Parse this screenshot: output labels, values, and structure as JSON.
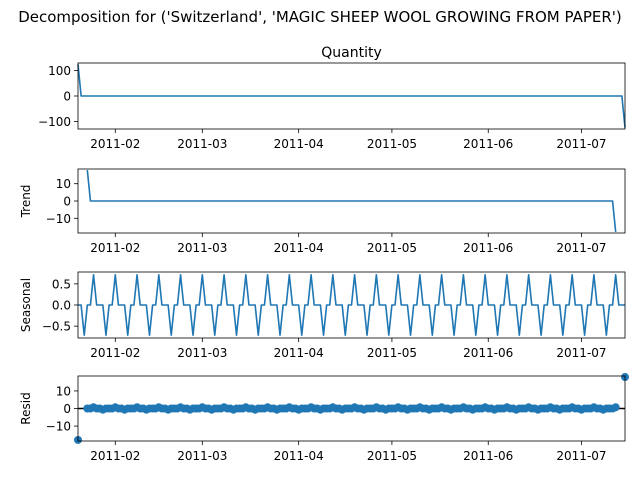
{
  "chart_data": {
    "type": "line",
    "title": "Decomposition for ('Switzerland', 'MAGIC SHEEP WOOL GROWING FROM PAPER')",
    "x_range": [
      "2011-01-20",
      "2011-07-15"
    ],
    "x_ticks": [
      "2011-02",
      "2011-03",
      "2011-04",
      "2011-05",
      "2011-06",
      "2011-07"
    ],
    "x_tick_dates": [
      "2011-02-01",
      "2011-03-01",
      "2011-04-01",
      "2011-05-01",
      "2011-06-01",
      "2011-07-01"
    ],
    "colors": {
      "line": "#1f77b4"
    },
    "grid": false,
    "panels": [
      {
        "id": "observed",
        "title": "Quantity",
        "ylabel": "",
        "style": "line",
        "ylim": [
          -130,
          130
        ],
        "yticks": [
          100,
          0,
          -100
        ],
        "ytick_labels": [
          "100",
          "0",
          "−100"
        ],
        "points": [
          [
            "2011-01-20",
            125
          ],
          [
            "2011-01-21",
            0
          ],
          [
            "2011-07-14",
            0
          ],
          [
            "2011-07-15",
            -125
          ]
        ]
      },
      {
        "id": "trend",
        "title": "",
        "ylabel": "Trend",
        "style": "line",
        "ylim": [
          -18.5,
          18.5
        ],
        "yticks": [
          10,
          0,
          -10
        ],
        "ytick_labels": [
          "10",
          "0",
          "−10"
        ],
        "points": [
          [
            "2011-01-23",
            17.9
          ],
          [
            "2011-01-24",
            0
          ],
          [
            "2011-07-11",
            0
          ],
          [
            "2011-07-12",
            -17.9
          ]
        ]
      },
      {
        "id": "seasonal",
        "title": "",
        "ylabel": "Seasonal",
        "style": "seasonal",
        "ylim": [
          -0.78,
          0.78
        ],
        "yticks": [
          0.5,
          0.0,
          -0.5
        ],
        "ytick_labels": [
          "0.5",
          "0.0",
          "−0.5"
        ],
        "period_pattern": [
          0,
          0,
          -0.714,
          0,
          0,
          0.714,
          0
        ],
        "start": "2011-01-20",
        "end": "2011-07-15"
      },
      {
        "id": "resid",
        "title": "",
        "ylabel": "Resid",
        "style": "scatter",
        "ylim": [
          -18.5,
          18.5
        ],
        "yticks": [
          10,
          0,
          -10
        ],
        "ytick_labels": [
          "10",
          "0",
          "−10"
        ],
        "zero_line": true,
        "start": "2011-01-23",
        "end": "2011-07-12",
        "pattern": [
          0,
          0,
          0.7,
          0,
          0,
          -0.7,
          0
        ],
        "outliers": [
          [
            "2011-01-20",
            -17.9
          ],
          [
            "2011-07-15",
            17.9
          ]
        ]
      }
    ]
  }
}
